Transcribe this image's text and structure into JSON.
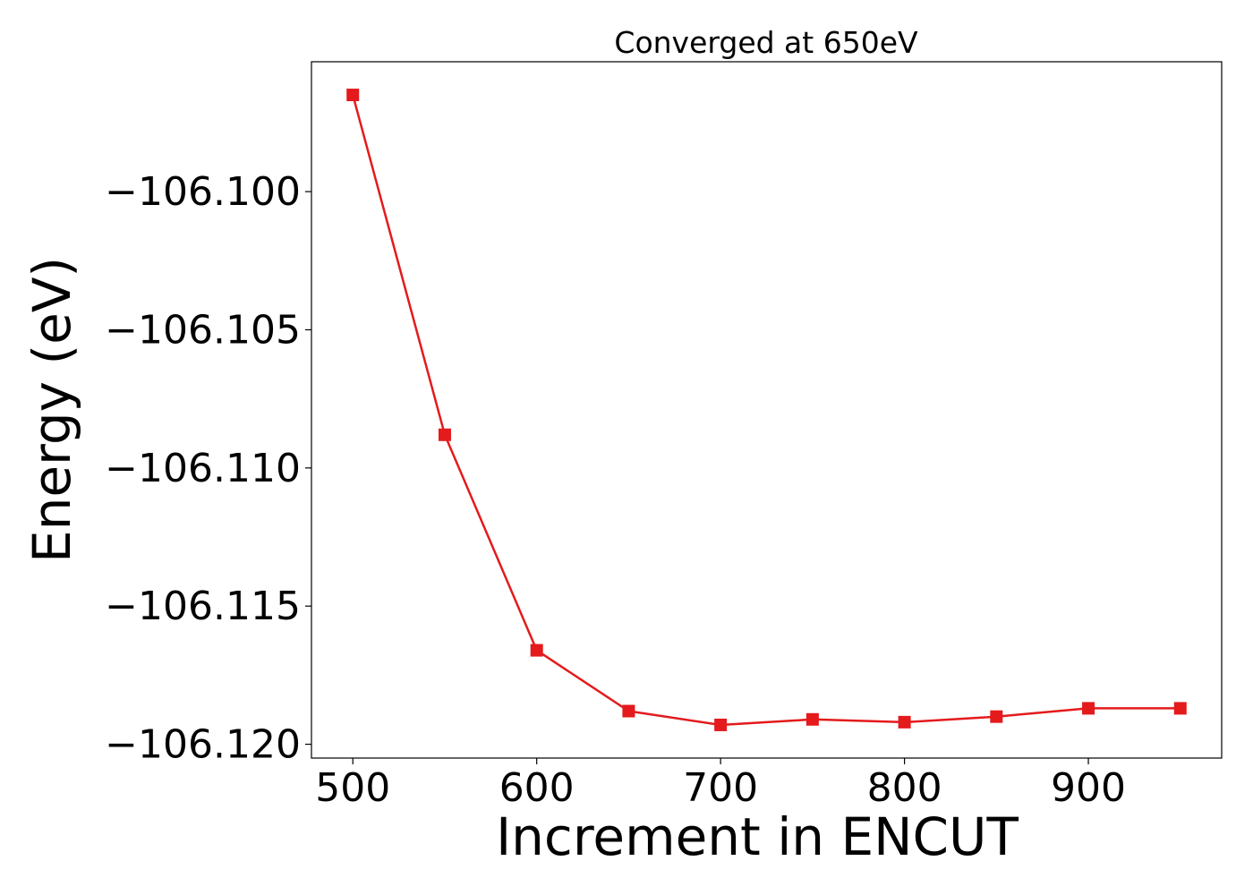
{
  "chart_data": {
    "type": "line",
    "title": "Converged at 650eV",
    "xlabel": "Increment in ENCUT",
    "ylabel": "Energy (eV)",
    "x": [
      500,
      550,
      600,
      650,
      700,
      750,
      800,
      850,
      900,
      950
    ],
    "series": [
      {
        "values": [
          -106.0965,
          -106.1088,
          -106.1166,
          -106.1188,
          -106.1193,
          -106.1191,
          -106.1192,
          -106.119,
          -106.1187,
          -106.1187
        ],
        "color": "#e41a1c",
        "marker": "square"
      }
    ],
    "xlim": [
      477.5,
      972.5
    ],
    "ylim": [
      -106.1205,
      -106.0953
    ],
    "xticks": [
      500,
      600,
      700,
      800,
      900
    ],
    "xtick_labels": [
      "500",
      "600",
      "700",
      "800",
      "900"
    ],
    "yticks": [
      -106.1,
      -106.105,
      -106.11,
      -106.115,
      -106.12
    ],
    "ytick_labels": [
      "−106.100",
      "−106.105",
      "−106.110",
      "−106.115",
      "−106.120"
    ],
    "grid": false,
    "legend": "none"
  }
}
